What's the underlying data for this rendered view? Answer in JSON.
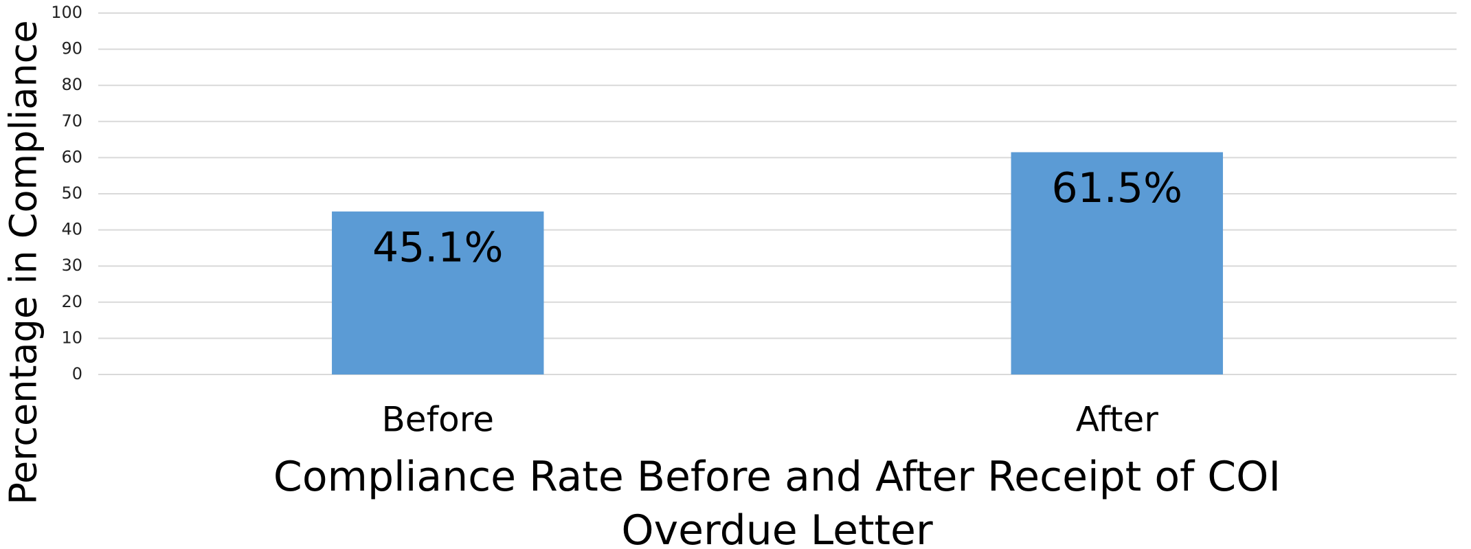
{
  "chart_data": {
    "type": "bar",
    "categories": [
      "Before",
      "After"
    ],
    "values": [
      45.1,
      61.5
    ],
    "value_labels": [
      "45.1%",
      "61.5%"
    ],
    "color": "#5b9bd5",
    "ylabel": "Percentage in Compliance",
    "xlabel": "Compliance Rate Before and After Receipt of COI Overdue Letter",
    "ylim": [
      0,
      100
    ],
    "yticks": [
      0,
      10,
      20,
      30,
      40,
      50,
      60,
      70,
      80,
      90,
      100
    ],
    "grid": true
  }
}
